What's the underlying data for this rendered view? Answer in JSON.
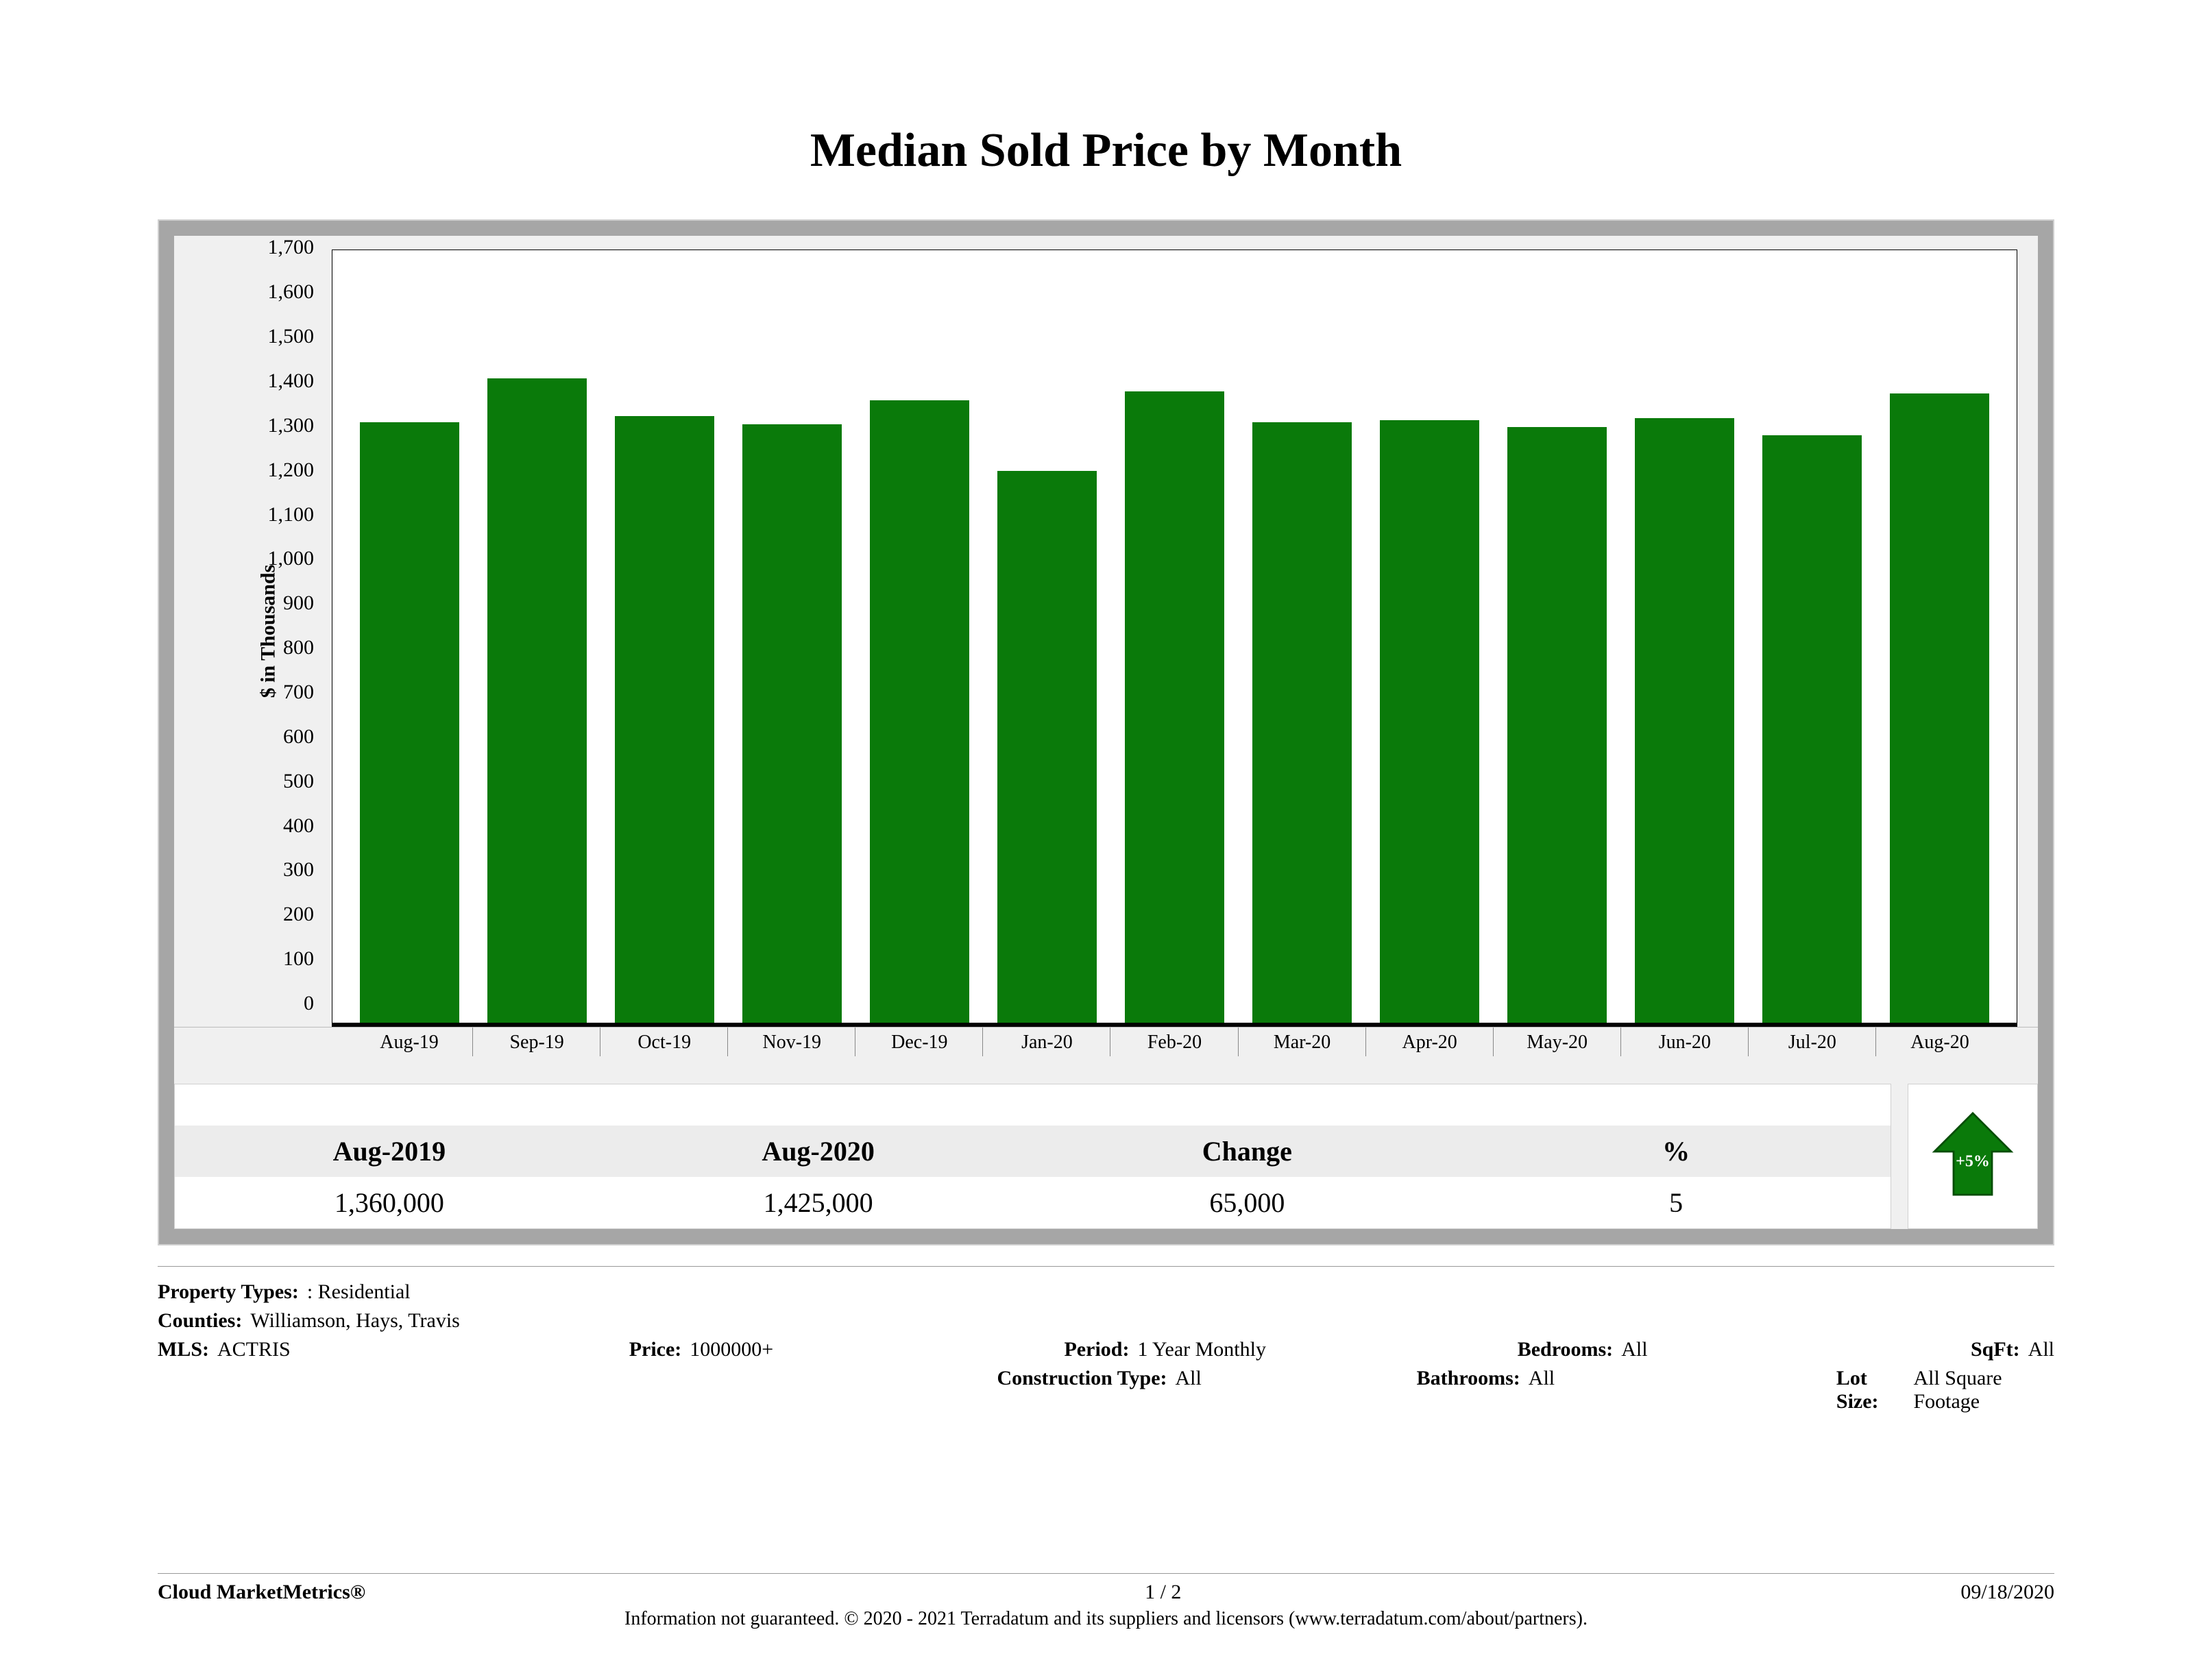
{
  "title": "Median Sold Price by Month",
  "chart": {
    "type": "bar",
    "y_axis_title": "$ in Thousands",
    "y_axis_title_fontsize": 30,
    "ylim": [
      0,
      1750
    ],
    "ytick_step": 100,
    "ytick_labels": [
      "0",
      "100",
      "200",
      "300",
      "400",
      "500",
      "600",
      "700",
      "800",
      "900",
      "1,000",
      "1,100",
      "1,200",
      "1,300",
      "1,400",
      "1,500",
      "1,600",
      "1,700"
    ],
    "tick_fontsize": 30,
    "categories": [
      "Aug-19",
      "Sep-19",
      "Oct-19",
      "Nov-19",
      "Dec-19",
      "Jan-20",
      "Feb-20",
      "Mar-20",
      "Apr-20",
      "May-20",
      "Jun-20",
      "Jul-20",
      "Aug-20"
    ],
    "values": [
      1360,
      1460,
      1375,
      1355,
      1410,
      1250,
      1430,
      1360,
      1365,
      1350,
      1370,
      1330,
      1425
    ],
    "bar_color": "#0a7a0a",
    "background_color": "#ffffff",
    "panel_color": "#f0f0f0",
    "frame_color": "#a6a6a6",
    "axis_line_color": "#000000",
    "bar_width_ratio": 0.78
  },
  "summary": {
    "headers": [
      "Aug-2019",
      "Aug-2020",
      "Change",
      "%"
    ],
    "values": [
      "1,360,000",
      "1,425,000",
      "65,000",
      "5"
    ],
    "arrow_label": "+5%",
    "arrow_color": "#0a7a0a"
  },
  "meta": {
    "property_types_key": "Property Types:",
    "property_types_val": ": Residential",
    "counties_key": "Counties:",
    "counties_val": "Williamson, Hays, Travis",
    "mls_key": "MLS:",
    "mls_val": "ACTRIS",
    "price_key": "Price:",
    "price_val": "1000000+",
    "period_key": "Period:",
    "period_val": "1 Year Monthly",
    "bedrooms_key": "Bedrooms:",
    "bedrooms_val": "All",
    "sqft_key": "SqFt:",
    "sqft_val": "All",
    "construction_key": "Construction Type:",
    "construction_val": "All",
    "bathrooms_key": "Bathrooms:",
    "bathrooms_val": "All",
    "lotsize_key": "Lot Size:",
    "lotsize_val": "All Square Footage"
  },
  "footer": {
    "brand": "Cloud MarketMetrics®",
    "page": "1 / 2",
    "date": "09/18/2020",
    "disclaimer": "Information not guaranteed. © 2020 - 2021 Terradatum and its suppliers and licensors (www.terradatum.com/about/partners)."
  }
}
